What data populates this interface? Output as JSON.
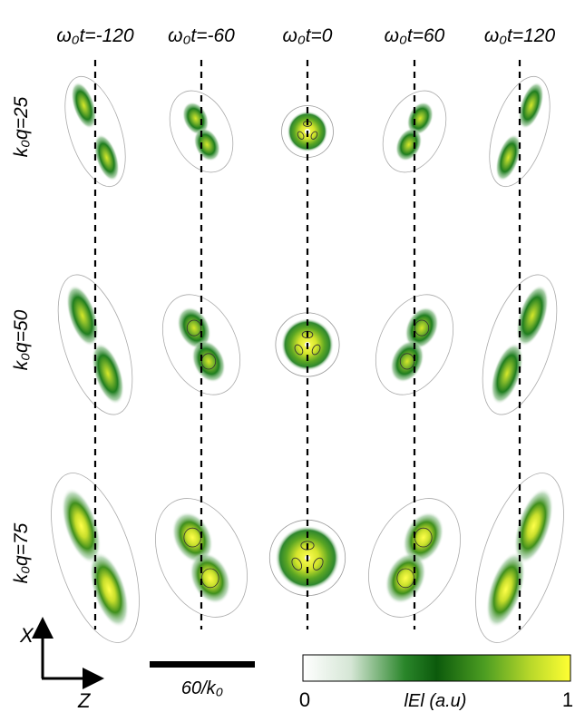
{
  "columns": [
    {
      "label": "ω₀t=-120",
      "t": -120
    },
    {
      "label": "ω₀t=-60",
      "t": -60
    },
    {
      "label": "ω₀t=0",
      "t": 0
    },
    {
      "label": "ω₀t=60",
      "t": 60
    },
    {
      "label": "ω₀t=120",
      "t": 120
    }
  ],
  "rows": [
    {
      "label": "k₀q=25",
      "q": 25
    },
    {
      "label": "k₀q=50",
      "q": 50
    },
    {
      "label": "k₀q=75",
      "q": 75
    }
  ],
  "axes": {
    "x_label": "X",
    "z_label": "Z"
  },
  "scalebar": {
    "label": "60/k₀"
  },
  "colorbar": {
    "min_label": "0",
    "max_label": "1",
    "title": "lEl (a.u)",
    "colors": [
      "#ffffff",
      "#cfe3cf",
      "#1d7a1d",
      "#0e5c0e",
      "#5aa623",
      "#c5de2a",
      "#ffff33"
    ]
  }
}
